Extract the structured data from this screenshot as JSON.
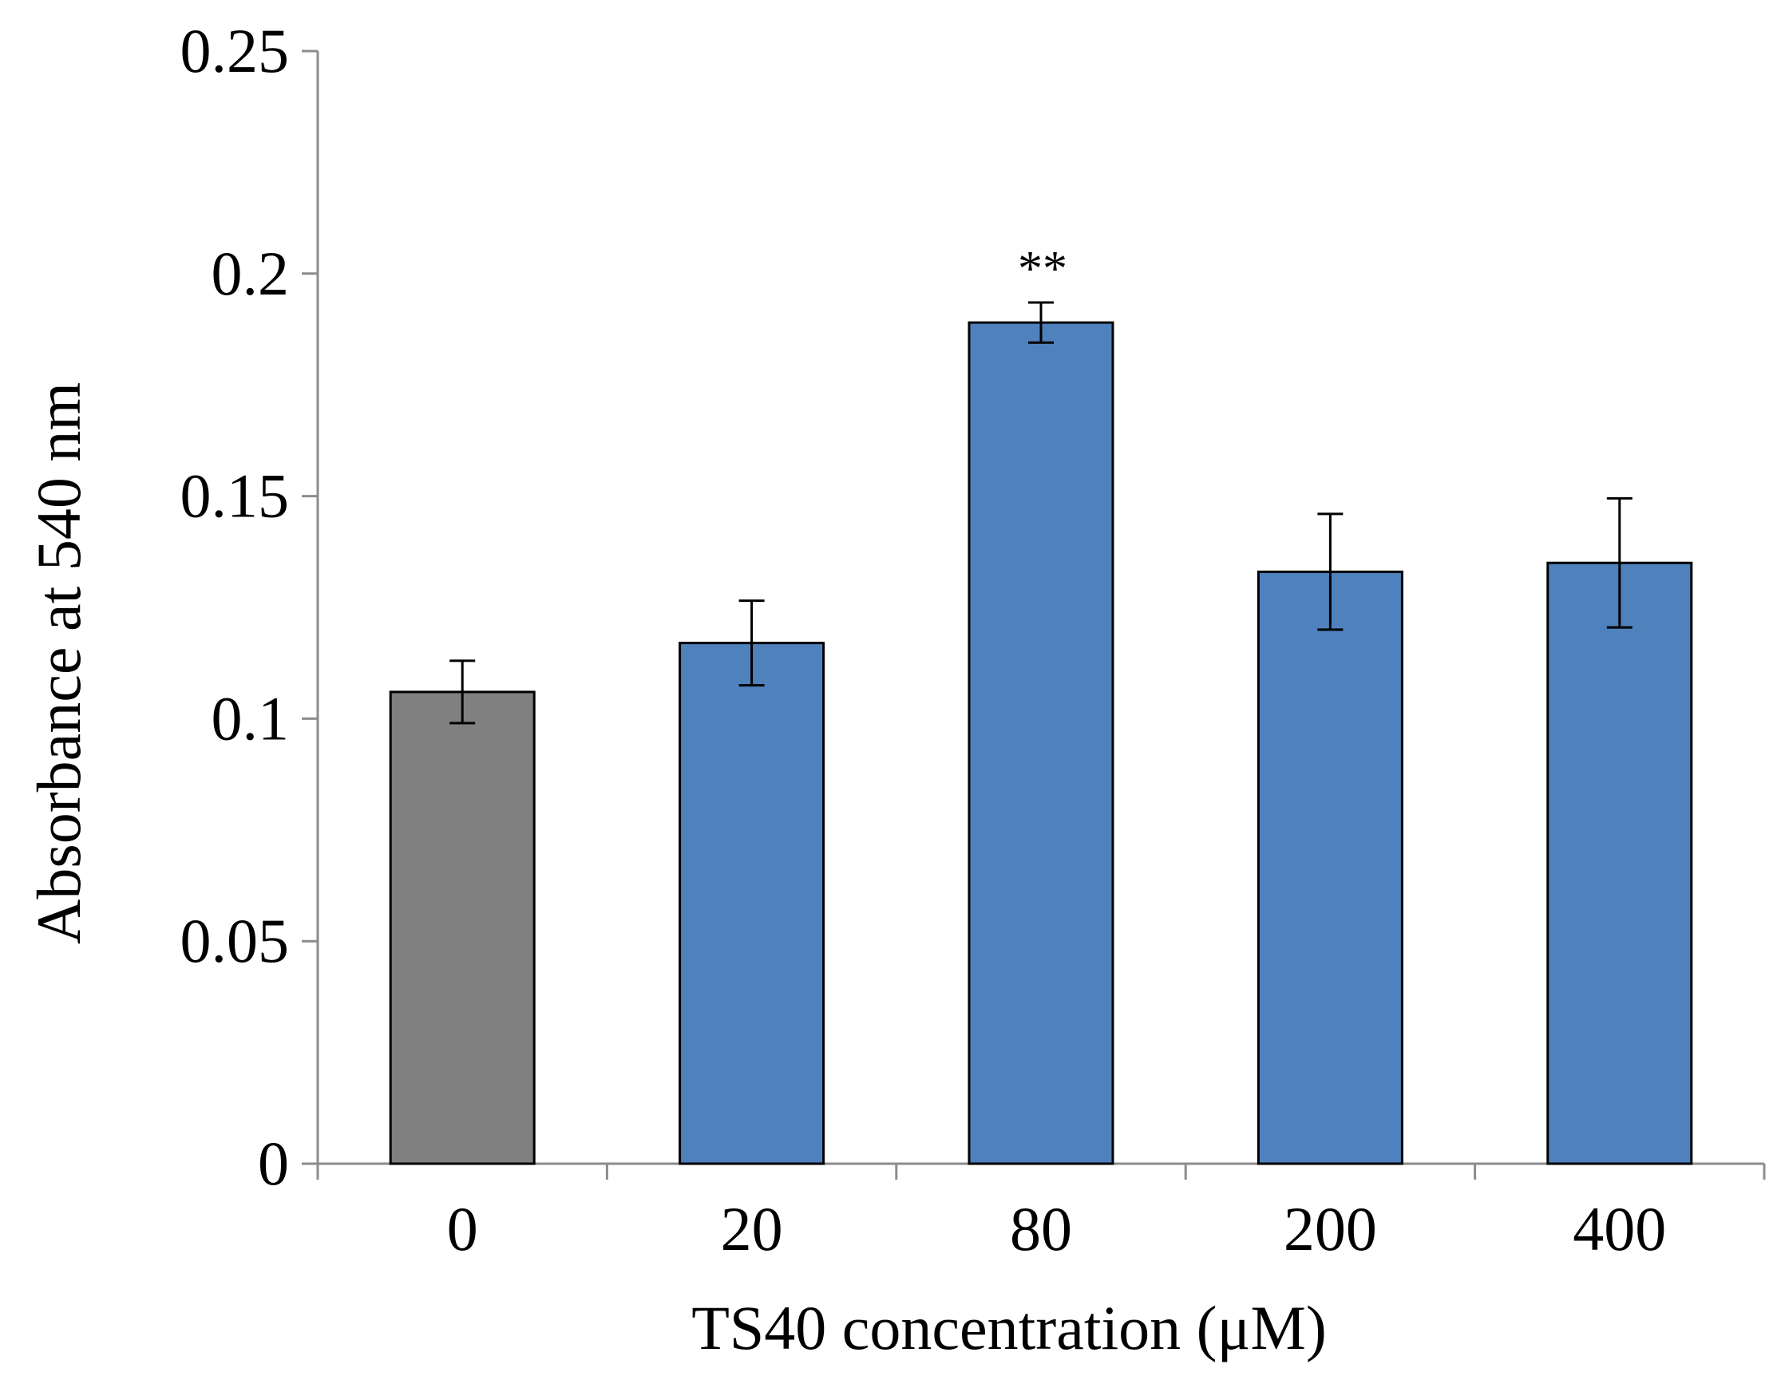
{
  "chart_data": {
    "type": "bar",
    "title": "",
    "xlabel": "TS40 concentration (μM)",
    "ylabel": "Absorbance at 540 nm",
    "categories": [
      "0",
      "20",
      "80",
      "200",
      "400"
    ],
    "values": [
      0.106,
      0.117,
      0.189,
      0.133,
      0.135
    ],
    "errors": [
      0.007,
      0.0095,
      0.0045,
      0.013,
      0.0145
    ],
    "ylim": [
      0,
      0.25
    ],
    "yticks": [
      0,
      0.05,
      0.1,
      0.15,
      0.2,
      0.25
    ],
    "ytick_labels": [
      "0",
      "0.05",
      "0.1",
      "0.15",
      "0.2",
      "0.25"
    ],
    "bar_colors": [
      "#808080",
      "#4f81bd",
      "#4f81bd",
      "#4f81bd",
      "#4f81bd"
    ],
    "annotations": [
      {
        "category": "80",
        "text": "**"
      }
    ],
    "grid": false,
    "legend": "none"
  }
}
